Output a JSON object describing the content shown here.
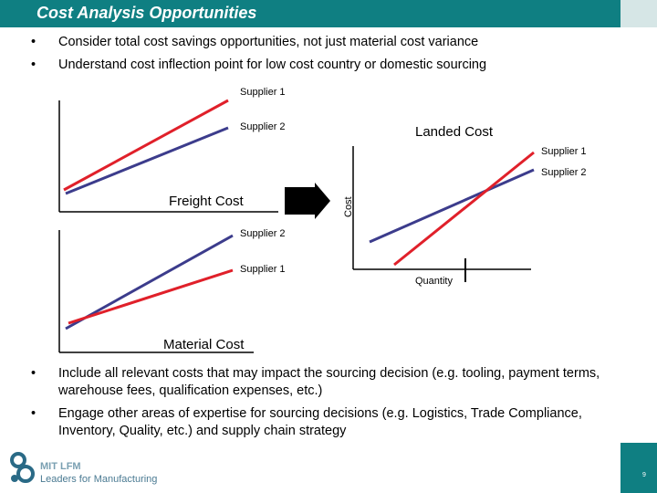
{
  "title": "Cost Analysis Opportunities",
  "bullets_top": [
    "Consider total cost savings opportunities, not just material cost variance",
    "Understand cost inflection point for low cost country or domestic sourcing"
  ],
  "bullet_symbol": "•",
  "freight_chart": {
    "label": "Freight Cost",
    "series": [
      {
        "name": "Supplier 1",
        "color": "#e0202a"
      },
      {
        "name": "Supplier 2",
        "color": "#3c3c8c"
      }
    ]
  },
  "material_chart": {
    "label": "Material Cost",
    "series": [
      {
        "name": "Supplier 2",
        "color": "#3c3c8c"
      },
      {
        "name": "Supplier 1",
        "color": "#e0202a"
      }
    ]
  },
  "landed_chart": {
    "label": "Landed Cost",
    "ylabel": "Cost",
    "xlabel": "Quantity",
    "series": [
      {
        "name": "Supplier 1",
        "color": "#e0202a"
      },
      {
        "name": "Supplier 2",
        "color": "#3c3c8c"
      }
    ]
  },
  "bullets_bottom": [
    "Include all relevant costs that may impact the sourcing decision (e.g. tooling, payment terms, warehouse fees, qualification expenses, etc.)",
    "Engage other areas of expertise for sourcing decisions (e.g. Logistics, Trade Compliance, Inventory, Quality, etc.) and supply chain strategy"
  ],
  "logo": {
    "line1": "MIT LFM",
    "line2": "Leaders for Manufacturing"
  },
  "page_number": "9"
}
